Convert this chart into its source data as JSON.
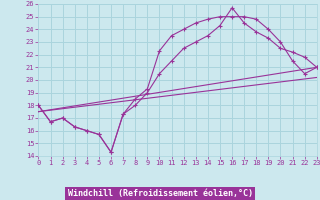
{
  "xlabel": "Windchill (Refroidissement éolien,°C)",
  "bg_color": "#cce8ee",
  "grid_color": "#aad4dd",
  "line_color": "#993399",
  "xlim": [
    0,
    23
  ],
  "ylim": [
    14,
    26
  ],
  "xticks": [
    0,
    1,
    2,
    3,
    4,
    5,
    6,
    7,
    8,
    9,
    10,
    11,
    12,
    13,
    14,
    15,
    16,
    17,
    18,
    19,
    20,
    21,
    22,
    23
  ],
  "yticks": [
    14,
    15,
    16,
    17,
    18,
    19,
    20,
    21,
    22,
    23,
    24,
    25,
    26
  ],
  "curve1_x": [
    0,
    1,
    2,
    3,
    4,
    5,
    6,
    7,
    8,
    9,
    10,
    11,
    12,
    13,
    14,
    15,
    16,
    17,
    18,
    19,
    20,
    21,
    22,
    23
  ],
  "curve1_y": [
    18.0,
    16.7,
    17.0,
    16.3,
    16.0,
    15.7,
    14.3,
    17.3,
    18.5,
    19.3,
    22.3,
    23.5,
    24.0,
    24.5,
    24.8,
    25.0,
    25.0,
    25.0,
    24.8,
    24.0,
    23.0,
    21.5,
    20.5,
    21.0
  ],
  "curve2_x": [
    0,
    1,
    2,
    3,
    4,
    5,
    6,
    7,
    8,
    9,
    10,
    11,
    12,
    13,
    14,
    15,
    16,
    17,
    18,
    19,
    20,
    21,
    22,
    23
  ],
  "curve2_y": [
    18.0,
    16.7,
    17.0,
    16.3,
    16.0,
    15.7,
    14.3,
    17.3,
    18.0,
    19.0,
    20.5,
    21.5,
    22.5,
    23.0,
    23.5,
    24.3,
    25.7,
    24.5,
    23.8,
    23.3,
    22.5,
    22.2,
    21.8,
    21.0
  ],
  "line1_x": [
    0,
    23
  ],
  "line1_y": [
    17.5,
    21.0
  ],
  "line2_x": [
    0,
    23
  ],
  "line2_y": [
    17.5,
    20.2
  ]
}
